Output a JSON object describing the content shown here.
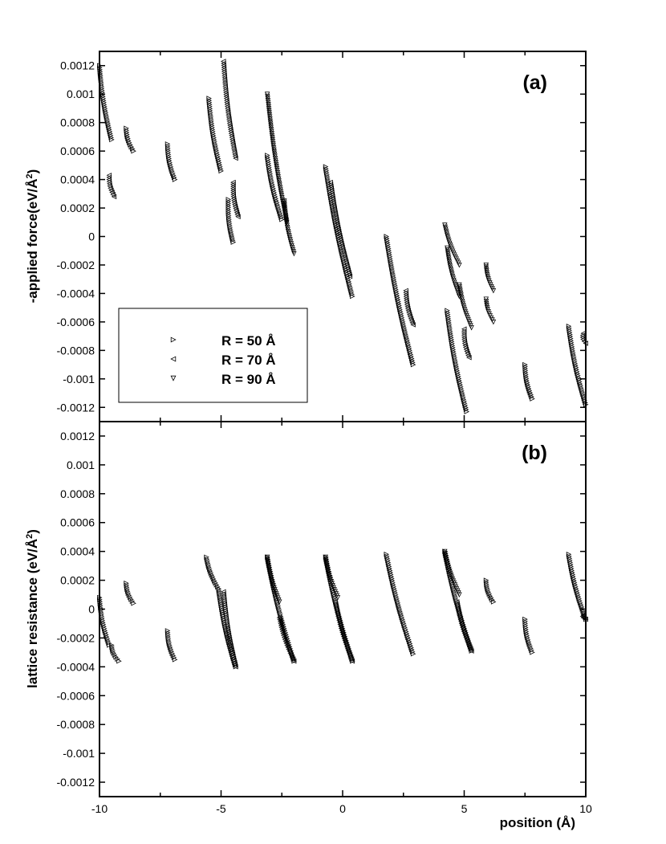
{
  "chart_data": [
    {
      "type": "scatter",
      "panel_label": "(a)",
      "ylabel": "-applied force(eV/Å²)",
      "ylabel_text": "-applied force(eV/Å",
      "ylabel_sup": "2",
      "ylabel_close": ")",
      "xlim": [
        -10,
        10
      ],
      "ylim": [
        -0.0013,
        0.0013
      ],
      "yticks": [
        0.0012,
        0.001,
        0.0008,
        0.0006,
        0.0004,
        0.0002,
        0,
        -0.0002,
        -0.0004,
        -0.0006,
        -0.0008,
        -0.001,
        -0.0012
      ],
      "ytick_labels": [
        "0.0012",
        "0.001",
        "0.0008",
        "0.0006",
        "0.0004",
        "0.0002",
        "0",
        "-0.0002",
        "-0.0004",
        "-0.0006",
        "-0.0008",
        "-0.001",
        "-0.0012"
      ],
      "legend_position": "lower-left",
      "grid": false,
      "series": [
        {
          "name": "R = 50 Å",
          "marker": "triangle-right",
          "segments": [
            {
              "x": [
                -10.0,
                -9.5
              ],
              "y": [
                0.0012,
                0.00068
              ]
            },
            {
              "x": [
                -8.9,
                -8.6
              ],
              "y": [
                0.00076,
                0.0006
              ]
            },
            {
              "x": [
                -7.2,
                -6.9
              ],
              "y": [
                0.00065,
                0.0004
              ]
            },
            {
              "x": [
                -5.5,
                -5.0
              ],
              "y": [
                0.00097,
                0.00046
              ]
            },
            {
              "x": [
                -4.7,
                -4.5
              ],
              "y": [
                0.00026,
                -4e-05
              ]
            },
            {
              "x": [
                -3.1,
                -2.5
              ],
              "y": [
                0.00057,
                0.00012
              ]
            },
            {
              "x": [
                -0.7,
                0.4
              ],
              "y": [
                0.00049,
                -0.00042
              ]
            },
            {
              "x": [
                1.8,
                2.9
              ],
              "y": [
                0.0,
                -0.0009
              ]
            },
            {
              "x": [
                4.3,
                5.1
              ],
              "y": [
                -0.00052,
                -0.00123
              ]
            },
            {
              "x": [
                7.5,
                7.8
              ],
              "y": [
                -0.0009,
                -0.00114
              ]
            },
            {
              "x": [
                9.3,
                10.0
              ],
              "y": [
                -0.00063,
                -0.00118
              ]
            }
          ]
        },
        {
          "name": "R = 70 Å",
          "marker": "triangle-left",
          "segments": [
            {
              "x": [
                -9.6,
                -9.4
              ],
              "y": [
                0.00043,
                0.00028
              ]
            },
            {
              "x": [
                -4.9,
                -4.4
              ],
              "y": [
                0.00123,
                0.00055
              ]
            },
            {
              "x": [
                -4.5,
                -4.3
              ],
              "y": [
                0.00038,
                0.00014
              ]
            },
            {
              "x": [
                -0.5,
                0.3
              ],
              "y": [
                0.00038,
                -0.00028
              ]
            },
            {
              "x": [
                2.6,
                2.9
              ],
              "y": [
                -0.00038,
                -0.00062
              ]
            },
            {
              "x": [
                5.0,
                5.2
              ],
              "y": [
                -0.00065,
                -0.00085
              ]
            },
            {
              "x": [
                9.9,
                10.0
              ],
              "y": [
                -0.00068,
                -0.00075
              ]
            }
          ]
        },
        {
          "name": "R = 90 Å",
          "marker": "triangle-down",
          "segments": [
            {
              "x": [
                -3.1,
                -2.3
              ],
              "y": [
                0.001,
                0.0001
              ]
            },
            {
              "x": [
                -2.4,
                -2.0
              ],
              "y": [
                0.00025,
                -0.00012
              ]
            },
            {
              "x": [
                4.2,
                4.8
              ],
              "y": [
                8e-05,
                -0.0002
              ]
            },
            {
              "x": [
                4.3,
                4.8
              ],
              "y": [
                -8e-05,
                -0.00042
              ]
            },
            {
              "x": [
                4.8,
                5.3
              ],
              "y": [
                -0.00034,
                -0.00064
              ]
            },
            {
              "x": [
                5.9,
                6.2
              ],
              "y": [
                -0.0002,
                -0.00038
              ]
            },
            {
              "x": [
                5.9,
                6.2
              ],
              "y": [
                -0.00044,
                -0.0006
              ]
            }
          ]
        }
      ]
    },
    {
      "type": "scatter",
      "panel_label": "(b)",
      "ylabel": "lattice resistance (eV/Å²)",
      "ylabel_text": "lattice resistance (eV/Å",
      "ylabel_sup": "2",
      "ylabel_close": ")",
      "xlabel": "position (Å)",
      "xlim": [
        -10,
        10
      ],
      "ylim": [
        -0.0013,
        0.0013
      ],
      "xticks": [
        -10,
        -5,
        0,
        5,
        10
      ],
      "xtick_labels": [
        "-10",
        "-5",
        "0",
        "5",
        "10"
      ],
      "yticks": [
        0.0012,
        0.001,
        0.0008,
        0.0006,
        0.0004,
        0.0002,
        0,
        -0.0002,
        -0.0004,
        -0.0006,
        -0.0008,
        -0.001,
        -0.0012
      ],
      "ytick_labels": [
        "0.0012",
        "0.001",
        "0.0008",
        "0.0006",
        "0.0004",
        "0.0002",
        "0",
        "-0.0002",
        "-0.0004",
        "-0.0006",
        "-0.0008",
        "-0.001",
        "-0.0012"
      ],
      "grid": false,
      "series": [
        {
          "name": "R = 50 Å",
          "marker": "triangle-right",
          "segments": [
            {
              "x": [
                -10.0,
                -9.6
              ],
              "y": [
                8e-05,
                -0.00025
              ]
            },
            {
              "x": [
                -9.5,
                -9.2
              ],
              "y": [
                -0.00025,
                -0.00036
              ]
            },
            {
              "x": [
                -8.9,
                -8.6
              ],
              "y": [
                0.00018,
                4e-05
              ]
            },
            {
              "x": [
                -7.2,
                -6.9
              ],
              "y": [
                -0.00015,
                -0.00035
              ]
            },
            {
              "x": [
                -5.6,
                -5.1
              ],
              "y": [
                0.00036,
                0.00014
              ]
            },
            {
              "x": [
                -5.1,
                -4.4
              ],
              "y": [
                0.00014,
                -0.0004
              ]
            },
            {
              "x": [
                -3.1,
                -2.0
              ],
              "y": [
                0.00036,
                -0.00036
              ]
            },
            {
              "x": [
                -0.7,
                0.4
              ],
              "y": [
                0.00036,
                -0.00036
              ]
            },
            {
              "x": [
                1.8,
                2.9
              ],
              "y": [
                0.00038,
                -0.00031
              ]
            },
            {
              "x": [
                4.2,
                5.3
              ],
              "y": [
                0.0004,
                -0.00029
              ]
            },
            {
              "x": [
                5.9,
                6.2
              ],
              "y": [
                0.0002,
                5e-05
              ]
            },
            {
              "x": [
                7.5,
                7.8
              ],
              "y": [
                -7e-05,
                -0.0003
              ]
            },
            {
              "x": [
                9.3,
                10.0
              ],
              "y": [
                0.00038,
                -7e-05
              ]
            }
          ]
        },
        {
          "name": "R = 70 Å",
          "marker": "triangle-left",
          "segments": [
            {
              "x": [
                -4.9,
                -4.4
              ],
              "y": [
                0.00012,
                -0.0004
              ]
            },
            {
              "x": [
                -2.6,
                -2.0
              ],
              "y": [
                -6e-05,
                -0.00036
              ]
            },
            {
              "x": [
                -0.3,
                0.4
              ],
              "y": [
                5e-05,
                -0.00036
              ]
            },
            {
              "x": [
                4.7,
                5.3
              ],
              "y": [
                5e-05,
                -0.00029
              ]
            },
            {
              "x": [
                9.9,
                10.0
              ],
              "y": [
                -4e-05,
                -7e-05
              ]
            }
          ]
        },
        {
          "name": "R = 90 Å",
          "marker": "triangle-down",
          "segments": [
            {
              "x": [
                -3.1,
                -2.6
              ],
              "y": [
                0.00036,
                5e-05
              ]
            },
            {
              "x": [
                -0.7,
                -0.2
              ],
              "y": [
                0.00036,
                8e-05
              ]
            },
            {
              "x": [
                4.2,
                4.8
              ],
              "y": [
                0.0004,
                0.0001
              ]
            }
          ]
        }
      ]
    }
  ]
}
